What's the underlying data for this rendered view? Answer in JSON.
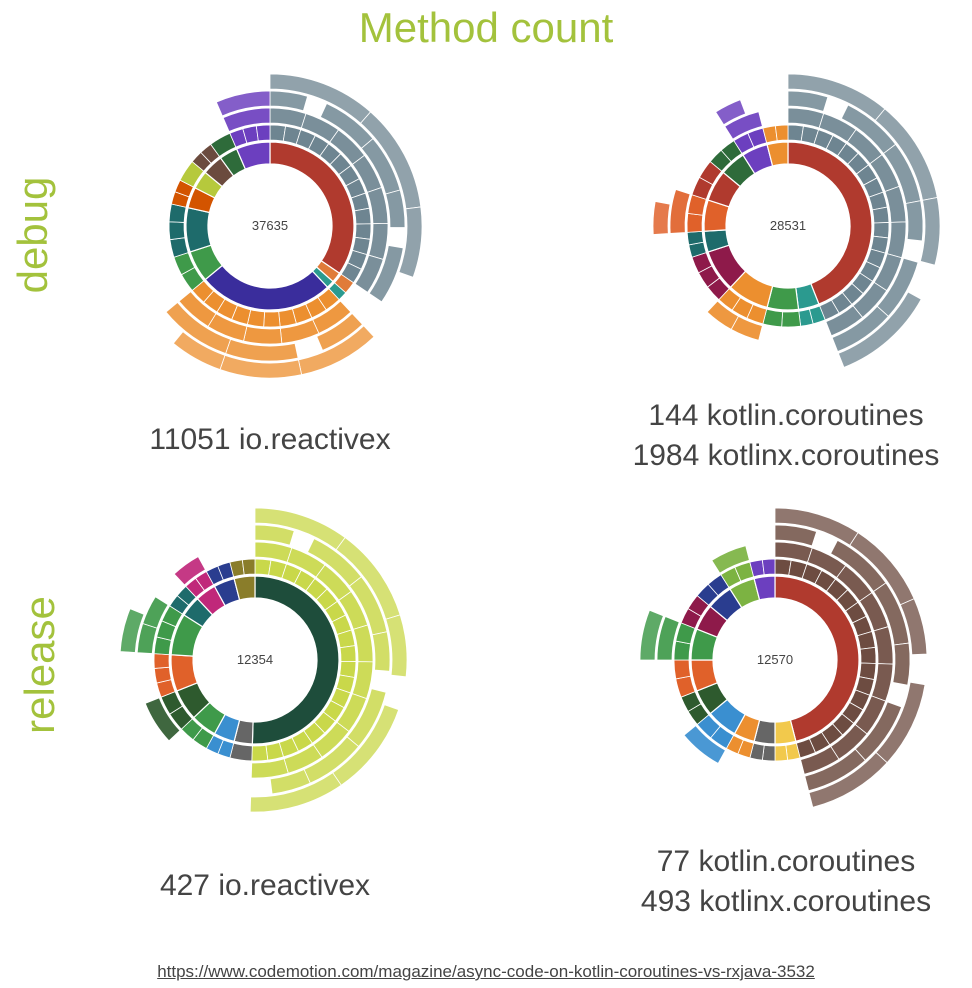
{
  "title": "Method count",
  "row_labels": {
    "debug": "debug",
    "release": "release"
  },
  "source_link": "https://www.codemotion.com/magazine/async-code-on-kotlin-coroutines-vs-rxjava-3532",
  "colors": {
    "accent": "#a3c23c"
  },
  "chart_data": [
    {
      "type": "sunburst",
      "id": "debug-rxjava",
      "center_label": "37635",
      "captions": [
        "11051 io.reactivex"
      ],
      "segments": [
        {
          "start": 0.0,
          "end": 0.345,
          "color": "#b03a2e",
          "depth": 5,
          "texture": "#6e8591"
        },
        {
          "start": 0.345,
          "end": 0.365,
          "color": "#e07b39",
          "depth": 2
        },
        {
          "start": 0.365,
          "end": 0.38,
          "color": "#2b9a8f",
          "depth": 2
        },
        {
          "start": 0.38,
          "end": 0.64,
          "color": "#3a2d9c",
          "depth": 5,
          "texture": "#ec8f2f"
        },
        {
          "start": 0.64,
          "end": 0.7,
          "color": "#3f9a4a",
          "depth": 2
        },
        {
          "start": 0.7,
          "end": 0.785,
          "color": "#1e6b6b",
          "depth": 2
        },
        {
          "start": 0.785,
          "end": 0.825,
          "color": "#d35400",
          "depth": 2
        },
        {
          "start": 0.825,
          "end": 0.86,
          "color": "#b6c93c",
          "depth": 2
        },
        {
          "start": 0.86,
          "end": 0.9,
          "color": "#6b4b3e",
          "depth": 2
        },
        {
          "start": 0.9,
          "end": 0.935,
          "color": "#2e6b3a",
          "depth": 2
        },
        {
          "start": 0.935,
          "end": 1.0,
          "color": "#6c3fbf",
          "depth": 4
        }
      ]
    },
    {
      "type": "sunburst",
      "id": "debug-coroutines",
      "center_label": "28531",
      "captions": [
        "144 kotlin.coroutines",
        "1984 kotlinx.coroutines"
      ],
      "segments": [
        {
          "start": 0.0,
          "end": 0.44,
          "color": "#b03a2e",
          "depth": 5,
          "texture": "#6e8591"
        },
        {
          "start": 0.44,
          "end": 0.48,
          "color": "#2b9a8f",
          "depth": 2
        },
        {
          "start": 0.48,
          "end": 0.54,
          "color": "#3f9a4a",
          "depth": 2
        },
        {
          "start": 0.54,
          "end": 0.62,
          "color": "#ec8f2f",
          "depth": 3
        },
        {
          "start": 0.62,
          "end": 0.7,
          "color": "#8e1a4a",
          "depth": 2
        },
        {
          "start": 0.7,
          "end": 0.74,
          "color": "#1e6b6b",
          "depth": 2
        },
        {
          "start": 0.74,
          "end": 0.8,
          "color": "#e0612a",
          "depth": 4
        },
        {
          "start": 0.8,
          "end": 0.86,
          "color": "#b03a2e",
          "depth": 2
        },
        {
          "start": 0.86,
          "end": 0.91,
          "color": "#2e6b3a",
          "depth": 2
        },
        {
          "start": 0.91,
          "end": 0.96,
          "color": "#6c3fbf",
          "depth": 4
        },
        {
          "start": 0.96,
          "end": 1.0,
          "color": "#ec8f2f",
          "depth": 2
        }
      ]
    },
    {
      "type": "sunburst",
      "id": "release-rxjava",
      "center_label": "12354",
      "captions": [
        "427 io.reactivex"
      ],
      "segments": [
        {
          "start": 0.0,
          "end": 0.505,
          "color": "#1e4d3b",
          "depth": 5,
          "texture": "#c9d84a"
        },
        {
          "start": 0.505,
          "end": 0.54,
          "color": "#666666",
          "depth": 2
        },
        {
          "start": 0.54,
          "end": 0.58,
          "color": "#3a8fd0",
          "depth": 2
        },
        {
          "start": 0.58,
          "end": 0.63,
          "color": "#3f9a4a",
          "depth": 2
        },
        {
          "start": 0.63,
          "end": 0.69,
          "color": "#2e5a2e",
          "depth": 3
        },
        {
          "start": 0.69,
          "end": 0.76,
          "color": "#e0612a",
          "depth": 2
        },
        {
          "start": 0.76,
          "end": 0.84,
          "color": "#3f9a4a",
          "depth": 4
        },
        {
          "start": 0.84,
          "end": 0.88,
          "color": "#1e6b6b",
          "depth": 2
        },
        {
          "start": 0.88,
          "end": 0.92,
          "color": "#c0287a",
          "depth": 3
        },
        {
          "start": 0.92,
          "end": 0.96,
          "color": "#2a3d8f",
          "depth": 2
        },
        {
          "start": 0.96,
          "end": 1.0,
          "color": "#8a7d2a",
          "depth": 2
        }
      ]
    },
    {
      "type": "sunburst",
      "id": "release-coroutines",
      "center_label": "12570",
      "captions": [
        "77 kotlin.coroutines",
        "493 kotlinx.coroutines"
      ],
      "segments": [
        {
          "start": 0.0,
          "end": 0.46,
          "color": "#b03a2e",
          "depth": 5,
          "texture": "#6d4c41"
        },
        {
          "start": 0.46,
          "end": 0.5,
          "color": "#f2c94c",
          "depth": 2
        },
        {
          "start": 0.5,
          "end": 0.54,
          "color": "#666666",
          "depth": 2
        },
        {
          "start": 0.54,
          "end": 0.58,
          "color": "#ec8f2f",
          "depth": 2
        },
        {
          "start": 0.58,
          "end": 0.64,
          "color": "#3a8fd0",
          "depth": 3
        },
        {
          "start": 0.64,
          "end": 0.69,
          "color": "#2e5a2e",
          "depth": 2
        },
        {
          "start": 0.69,
          "end": 0.75,
          "color": "#e0612a",
          "depth": 2
        },
        {
          "start": 0.75,
          "end": 0.81,
          "color": "#3f9a4a",
          "depth": 4
        },
        {
          "start": 0.81,
          "end": 0.86,
          "color": "#8e1a4a",
          "depth": 2
        },
        {
          "start": 0.86,
          "end": 0.91,
          "color": "#2a3d8f",
          "depth": 2
        },
        {
          "start": 0.91,
          "end": 0.96,
          "color": "#7cb342",
          "depth": 3
        },
        {
          "start": 0.96,
          "end": 1.0,
          "color": "#6c3fbf",
          "depth": 2
        }
      ]
    }
  ]
}
